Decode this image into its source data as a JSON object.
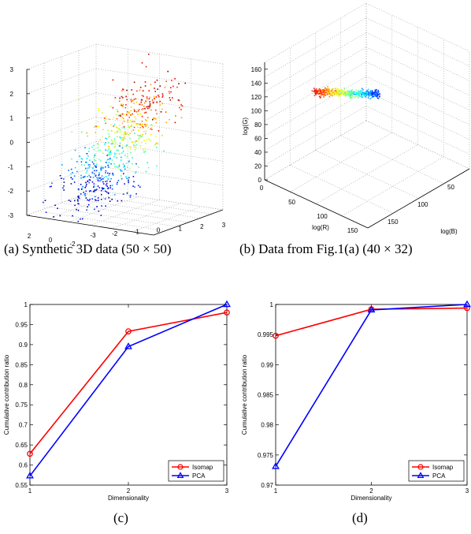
{
  "captions": {
    "a": "(a)  Synthetic 3D data (50 × 50)",
    "b": "(b)  Data from Fig.1(a) (40 × 32)",
    "c": "(c)",
    "d": "(d)"
  },
  "chart_data": [
    {
      "id": "a",
      "type": "scatter",
      "title": "",
      "x_ticks": [
        "2",
        "0",
        "-2"
      ],
      "y_ticks": [
        "-3",
        "-2",
        "-1",
        "0",
        "1",
        "2",
        "3"
      ],
      "z_ticks": [
        "3",
        "2",
        "1",
        "0",
        "-1",
        "-2",
        "-3"
      ],
      "vlim": [
        -3,
        3
      ],
      "colormap": "jet",
      "grid": true,
      "n_points": 700
    },
    {
      "id": "b",
      "type": "scatter",
      "title": "",
      "xlabel": "log(R)",
      "ylabel": "log(B)",
      "zlabel": "log(G)",
      "x_ticks": [
        "0",
        "50",
        "100",
        "150"
      ],
      "y_ticks": [
        "0",
        "50",
        "100",
        "150"
      ],
      "z_ticks": [
        "0",
        "20",
        "40",
        "60",
        "80",
        "100",
        "120",
        "140",
        "160"
      ],
      "zlim": [
        0,
        170
      ],
      "colormap": "jet",
      "grid": true,
      "n_points": 500
    },
    {
      "id": "c",
      "type": "line",
      "xlabel": "Dimensionality",
      "ylabel": "Cumulative contribution ratio",
      "x": [
        1,
        2,
        3
      ],
      "xlim": [
        1,
        3
      ],
      "ylim": [
        0.55,
        1
      ],
      "x_ticks": [
        "1",
        "2",
        "3"
      ],
      "y_ticks": [
        "0.55",
        "0.6",
        "0.65",
        "0.7",
        "0.75",
        "0.8",
        "0.85",
        "0.9",
        "0.95",
        "1"
      ],
      "legend": "bottom-right",
      "series": [
        {
          "name": "Isomap",
          "values": [
            0.628,
            0.933,
            0.98
          ],
          "color": "#ff0000",
          "marker": "circle"
        },
        {
          "name": "PCA",
          "values": [
            0.573,
            0.895,
            1.0
          ],
          "color": "#0000ff",
          "marker": "triangle"
        }
      ]
    },
    {
      "id": "d",
      "type": "line",
      "xlabel": "Dimensionality",
      "ylabel": "Cumulative contribution ratio",
      "x": [
        1,
        2,
        3
      ],
      "xlim": [
        1,
        3
      ],
      "ylim": [
        0.97,
        1
      ],
      "x_ticks": [
        "1",
        "2",
        "3"
      ],
      "y_ticks": [
        "0.97",
        "0.975",
        "0.98",
        "0.985",
        "0.99",
        "0.995",
        "1"
      ],
      "legend": "bottom-right",
      "series": [
        {
          "name": "Isomap",
          "values": [
            0.9948,
            0.9992,
            0.9994
          ],
          "color": "#ff0000",
          "marker": "circle"
        },
        {
          "name": "PCA",
          "values": [
            0.9731,
            0.9991,
            1.0
          ],
          "color": "#0000ff",
          "marker": "triangle"
        }
      ]
    }
  ]
}
